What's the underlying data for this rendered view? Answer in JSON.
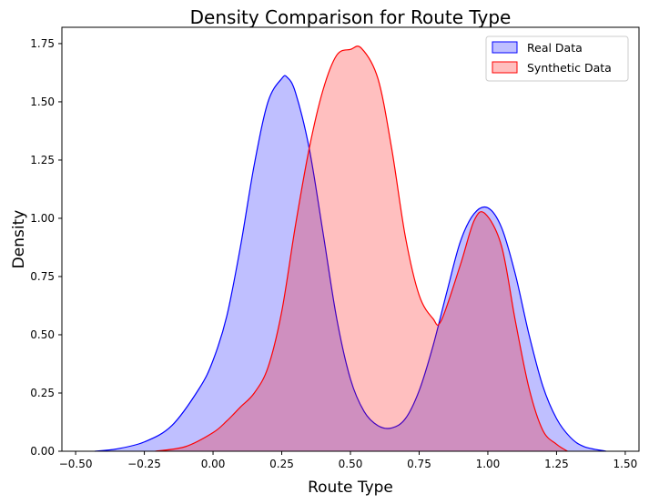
{
  "chart_data": {
    "type": "area",
    "title": "Density Comparison for Route Type",
    "xlabel": "Route Type",
    "ylabel": "Density",
    "xlim": [
      -0.55,
      1.55
    ],
    "ylim": [
      0,
      1.82
    ],
    "x_ticks": [
      -0.5,
      -0.25,
      0.0,
      0.25,
      0.5,
      0.75,
      1.0,
      1.25,
      1.5
    ],
    "x_tick_labels": [
      "−0.50",
      "−0.25",
      "0.00",
      "0.25",
      "0.50",
      "0.75",
      "1.00",
      "1.25",
      "1.50"
    ],
    "y_ticks": [
      0,
      0.25,
      0.5,
      0.75,
      1.0,
      1.25,
      1.5,
      1.75
    ],
    "y_tick_labels": [
      "0.00",
      "0.25",
      "0.50",
      "0.75",
      "1.00",
      "1.25",
      "1.50",
      "1.75"
    ],
    "legend_position": "top-right",
    "grid": false,
    "series": [
      {
        "name": "Real Data",
        "color": "#0000ff",
        "fill": "#0000ff",
        "x": [
          -0.43,
          -0.35,
          -0.25,
          -0.15,
          -0.05,
          0.0,
          0.05,
          0.1,
          0.15,
          0.2,
          0.25,
          0.27,
          0.3,
          0.35,
          0.4,
          0.45,
          0.5,
          0.55,
          0.6,
          0.65,
          0.7,
          0.75,
          0.8,
          0.85,
          0.9,
          0.95,
          1.0,
          1.05,
          1.1,
          1.15,
          1.2,
          1.25,
          1.3,
          1.35,
          1.43
        ],
        "y": [
          0.0,
          0.01,
          0.04,
          0.11,
          0.27,
          0.39,
          0.58,
          0.88,
          1.23,
          1.5,
          1.6,
          1.605,
          1.54,
          1.3,
          0.94,
          0.57,
          0.31,
          0.17,
          0.11,
          0.1,
          0.14,
          0.26,
          0.45,
          0.68,
          0.9,
          1.02,
          1.045,
          0.96,
          0.76,
          0.5,
          0.28,
          0.14,
          0.06,
          0.02,
          0.0
        ]
      },
      {
        "name": "Synthetic Data",
        "color": "#ff0000",
        "fill": "#ff0000",
        "x": [
          -0.21,
          -0.1,
          0.0,
          0.05,
          0.1,
          0.15,
          0.2,
          0.25,
          0.3,
          0.35,
          0.4,
          0.45,
          0.5,
          0.54,
          0.6,
          0.65,
          0.7,
          0.75,
          0.8,
          0.83,
          0.9,
          0.95,
          0.99,
          1.05,
          1.1,
          1.15,
          1.2,
          1.25,
          1.29
        ],
        "y": [
          0.0,
          0.02,
          0.08,
          0.13,
          0.19,
          0.25,
          0.36,
          0.6,
          0.97,
          1.3,
          1.55,
          1.7,
          1.725,
          1.73,
          1.6,
          1.3,
          0.92,
          0.67,
          0.57,
          0.56,
          0.8,
          0.99,
          1.02,
          0.88,
          0.56,
          0.27,
          0.09,
          0.03,
          0.0
        ]
      }
    ]
  }
}
